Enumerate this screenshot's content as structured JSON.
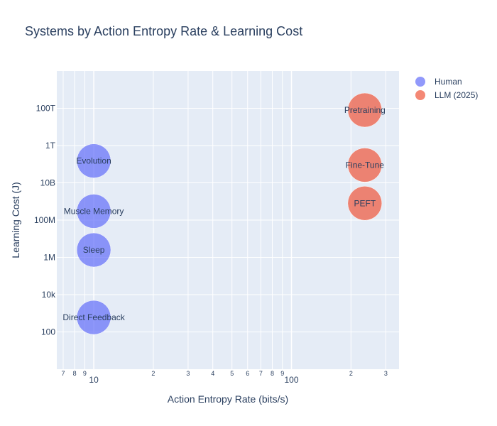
{
  "chart_data": {
    "type": "scatter",
    "title": "Systems by Action Entropy Rate & Learning Cost",
    "xlabel": "Action Entropy Rate (bits/s)",
    "ylabel": "Learning Cost (J)",
    "xscale": "log",
    "yscale": "log",
    "xlim": [
      6.5,
      350
    ],
    "ylim": [
      1,
      1e+16
    ],
    "x_major_ticks": [
      {
        "value": 10,
        "label": "10"
      },
      {
        "value": 100,
        "label": "100"
      }
    ],
    "x_minor_ticks": [
      {
        "value": 7,
        "label": "7"
      },
      {
        "value": 8,
        "label": "8"
      },
      {
        "value": 9,
        "label": "9"
      },
      {
        "value": 20,
        "label": "2"
      },
      {
        "value": 30,
        "label": "3"
      },
      {
        "value": 40,
        "label": "4"
      },
      {
        "value": 50,
        "label": "5"
      },
      {
        "value": 60,
        "label": "6"
      },
      {
        "value": 70,
        "label": "7"
      },
      {
        "value": 80,
        "label": "8"
      },
      {
        "value": 90,
        "label": "9"
      },
      {
        "value": 200,
        "label": "2"
      },
      {
        "value": 300,
        "label": "3"
      }
    ],
    "y_ticks": [
      {
        "value": 100,
        "label": "100"
      },
      {
        "value": 10000,
        "label": "10k"
      },
      {
        "value": 1000000,
        "label": "1M"
      },
      {
        "value": 100000000,
        "label": "100M"
      },
      {
        "value": 10000000000,
        "label": "10B"
      },
      {
        "value": 1000000000000,
        "label": "1T"
      },
      {
        "value": 100000000000000,
        "label": "100T"
      }
    ],
    "series": [
      {
        "name": "Human",
        "color": "#636efa",
        "points": [
          {
            "label": "Evolution",
            "x": 10,
            "y": 150000000000.0
          },
          {
            "label": "Muscle Memory",
            "x": 10,
            "y": 300000000.0
          },
          {
            "label": "Sleep",
            "x": 10,
            "y": 2500000.0
          },
          {
            "label": "Direct Feedback",
            "x": 10,
            "y": 600
          }
        ]
      },
      {
        "name": "LLM (2025)",
        "color": "#ef553b",
        "points": [
          {
            "label": "Pretraining",
            "x": 235,
            "y": 80000000000000.0
          },
          {
            "label": "Fine-Tune",
            "x": 235,
            "y": 90000000000.0
          },
          {
            "label": "PEFT",
            "x": 235,
            "y": 800000000.0
          }
        ]
      }
    ],
    "legend_position": "top-right"
  }
}
